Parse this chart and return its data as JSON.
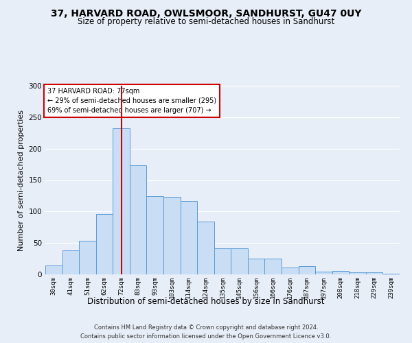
{
  "title": "37, HARVARD ROAD, OWLSMOOR, SANDHURST, GU47 0UY",
  "subtitle": "Size of property relative to semi-detached houses in Sandhurst",
  "xlabel": "Distribution of semi-detached houses by size in Sandhurst",
  "ylabel": "Number of semi-detached properties",
  "categories": [
    "30sqm",
    "41sqm",
    "51sqm",
    "62sqm",
    "72sqm",
    "83sqm",
    "93sqm",
    "103sqm",
    "114sqm",
    "124sqm",
    "135sqm",
    "145sqm",
    "156sqm",
    "166sqm",
    "176sqm",
    "187sqm",
    "197sqm",
    "208sqm",
    "218sqm",
    "229sqm",
    "239sqm"
  ],
  "values": [
    14,
    38,
    54,
    96,
    232,
    173,
    124,
    123,
    117,
    84,
    42,
    42,
    25,
    25,
    11,
    13,
    4,
    6,
    3,
    3,
    1
  ],
  "bar_color": "#c9ddf5",
  "bar_edge_color": "#5b9bd5",
  "vline_x": 4,
  "vline_color": "#cc0000",
  "annotation_text": "37 HARVARD ROAD: 77sqm\n← 29% of semi-detached houses are smaller (295)\n69% of semi-detached houses are larger (707) →",
  "annotation_box_facecolor": "#ffffff",
  "annotation_box_edgecolor": "#cc0000",
  "ylim": [
    0,
    300
  ],
  "yticks": [
    0,
    50,
    100,
    150,
    200,
    250,
    300
  ],
  "footer1": "Contains HM Land Registry data © Crown copyright and database right 2024.",
  "footer2": "Contains public sector information licensed under the Open Government Licence v3.0.",
  "bg_color": "#e8eef8",
  "grid_color": "#ffffff",
  "title_fontsize": 10,
  "subtitle_fontsize": 8.5,
  "ylabel_fontsize": 8,
  "xlabel_fontsize": 8.5,
  "tick_fontsize": 6.5,
  "footer_fontsize": 6,
  "annot_fontsize": 7
}
